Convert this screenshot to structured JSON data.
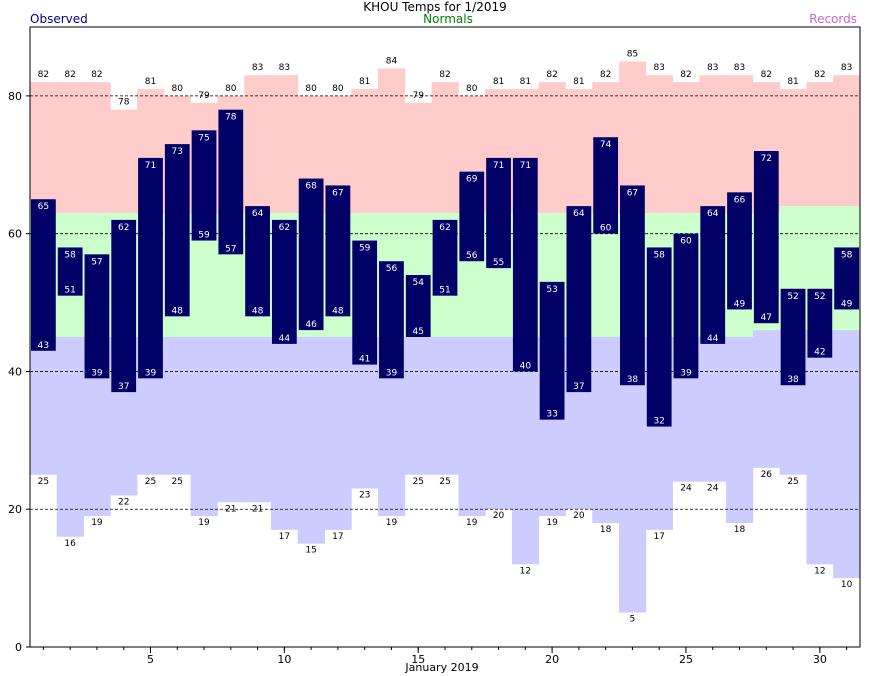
{
  "chart_data": {
    "type": "bar",
    "title": "KHOU Temps for 1/2019",
    "xlabel": "January 2019",
    "ylabel": "",
    "xlim": [
      0.5,
      31.5
    ],
    "ylim": [
      0,
      90
    ],
    "x_ticks": [
      5,
      10,
      15,
      20,
      25,
      30
    ],
    "y_ticks": [
      0,
      20,
      40,
      60,
      80
    ],
    "grid": "dashed horizontal at 20, 40, 60, 80",
    "legend": [
      "Observed",
      "Normals",
      "Records"
    ],
    "days": [
      1,
      2,
      3,
      4,
      5,
      6,
      7,
      8,
      9,
      10,
      11,
      12,
      13,
      14,
      15,
      16,
      17,
      18,
      19,
      20,
      21,
      22,
      23,
      24,
      25,
      26,
      27,
      28,
      29,
      30,
      31
    ],
    "series": [
      {
        "name": "Observed",
        "high": [
          65,
          58,
          57,
          62,
          71,
          73,
          75,
          78,
          64,
          62,
          68,
          67,
          59,
          56,
          54,
          62,
          69,
          71,
          71,
          53,
          64,
          74,
          67,
          58,
          60,
          64,
          66,
          72,
          52,
          52,
          58
        ],
        "low": [
          43,
          51,
          39,
          37,
          39,
          48,
          59,
          57,
          48,
          44,
          46,
          48,
          41,
          39,
          45,
          51,
          56,
          55,
          40,
          33,
          37,
          60,
          38,
          32,
          39,
          44,
          49,
          47,
          38,
          42,
          49
        ]
      },
      {
        "name": "Normals",
        "high": [
          63,
          63,
          63,
          63,
          63,
          63,
          63,
          63,
          63,
          63,
          63,
          63,
          63,
          63,
          63,
          63,
          63,
          63,
          63,
          63,
          63,
          63,
          63,
          63,
          63,
          63,
          63,
          63,
          64,
          64,
          64
        ],
        "low": [
          45,
          45,
          45,
          45,
          45,
          45,
          45,
          45,
          45,
          45,
          45,
          45,
          45,
          45,
          45,
          45,
          45,
          45,
          45,
          45,
          45,
          45,
          45,
          45,
          45,
          45,
          45,
          46,
          46,
          46,
          46
        ]
      },
      {
        "name": "Records",
        "high": [
          82,
          82,
          82,
          78,
          81,
          80,
          79,
          80,
          83,
          83,
          80,
          80,
          81,
          84,
          79,
          82,
          80,
          81,
          81,
          82,
          81,
          82,
          85,
          83,
          82,
          83,
          83,
          82,
          81,
          82,
          83
        ],
        "low": [
          25,
          16,
          19,
          22,
          25,
          25,
          19,
          21,
          21,
          17,
          15,
          17,
          23,
          19,
          25,
          25,
          19,
          20,
          12,
          19,
          20,
          18,
          5,
          17,
          24,
          24,
          18,
          26,
          25,
          12,
          10
        ]
      }
    ],
    "colors": {
      "observed": "#000066",
      "observed_label": "#ffffff",
      "normal": "#ccffcc",
      "record_high": "#ffcccc",
      "record_low": "#ccccff",
      "legend_observed": "#000080",
      "legend_normals": "#008000",
      "legend_records": "#cc66cc",
      "grid": "#000000"
    }
  }
}
